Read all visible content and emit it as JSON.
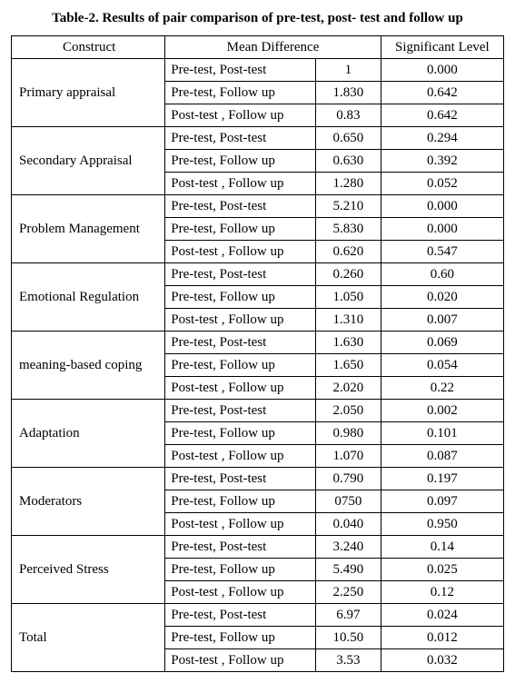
{
  "title": "Table-2. Results of pair comparison of pre-test, post- test and follow up",
  "headers": {
    "construct": "Construct",
    "meanDiff": "Mean Difference",
    "sig": "Significant Level"
  },
  "pairLabels": {
    "prePost": "Pre-test, Post-test",
    "preFollow": "Pre-test, Follow up",
    "postFollow": "Post-test , Follow up"
  },
  "rows": [
    {
      "construct": "Primary appraisal",
      "prePostVal": "1",
      "prePostSig": "0.000",
      "preFollowVal": "1.830",
      "preFollowSig": "0.642",
      "postFollowVal": "0.83",
      "postFollowSig": "0.642"
    },
    {
      "construct": "Secondary Appraisal",
      "prePostVal": "0.650",
      "prePostSig": "0.294",
      "preFollowVal": "0.630",
      "preFollowSig": "0.392",
      "postFollowVal": "1.280",
      "postFollowSig": "0.052"
    },
    {
      "construct": "Problem Management",
      "prePostVal": "5.210",
      "prePostSig": "0.000",
      "preFollowVal": "5.830",
      "preFollowSig": "0.000",
      "postFollowVal": "0.620",
      "postFollowSig": "0.547"
    },
    {
      "construct": "Emotional Regulation",
      "prePostVal": "0.260",
      "prePostSig": "0.60",
      "preFollowVal": "1.050",
      "preFollowSig": "0.020",
      "postFollowVal": "1.310",
      "postFollowSig": "0.007"
    },
    {
      "construct": "meaning-based coping",
      "prePostVal": "1.630",
      "prePostSig": "0.069",
      "preFollowVal": "1.650",
      "preFollowSig": "0.054",
      "postFollowVal": "2.020",
      "postFollowSig": "0.22"
    },
    {
      "construct": "Adaptation",
      "prePostVal": "2.050",
      "prePostSig": "0.002",
      "preFollowVal": "0.980",
      "preFollowSig": "0.101",
      "postFollowVal": "1.070",
      "postFollowSig": "0.087"
    },
    {
      "construct": "Moderators",
      "prePostVal": "0.790",
      "prePostSig": "0.197",
      "preFollowVal": "0750",
      "preFollowSig": "0.097",
      "postFollowVal": "0.040",
      "postFollowSig": "0.950"
    },
    {
      "construct": "Perceived Stress",
      "prePostVal": "3.240",
      "prePostSig": "0.14",
      "preFollowVal": "5.490",
      "preFollowSig": "0.025",
      "postFollowVal": "2.250",
      "postFollowSig": "0.12"
    },
    {
      "construct": "Total",
      "prePostVal": "6.97",
      "prePostSig": "0.024",
      "preFollowVal": "10.50",
      "preFollowSig": "0.012",
      "postFollowVal": "3.53",
      "postFollowSig": "0.032"
    }
  ]
}
